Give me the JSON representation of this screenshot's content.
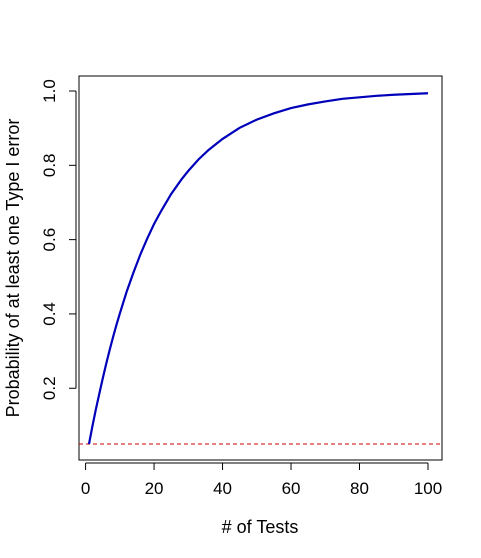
{
  "chart_data": {
    "type": "line",
    "title": "",
    "xlabel": "# of Tests",
    "ylabel": "Probability of at least one Type I error",
    "xlim": [
      1,
      100
    ],
    "ylim": [
      0.05,
      1.0
    ],
    "x_ticks": [
      0,
      20,
      40,
      60,
      80,
      100
    ],
    "y_ticks": [
      0.2,
      0.4,
      0.6,
      0.8,
      1.0
    ],
    "x_tick_labels": [
      "0",
      "20",
      "40",
      "60",
      "80",
      "100"
    ],
    "y_tick_labels": [
      "0.2",
      "0.4",
      "0.6",
      "0.8",
      "1.0"
    ],
    "series": [
      {
        "color": "#0000bb",
        "x": [
          1,
          2,
          3,
          4,
          5,
          6,
          7,
          8,
          9,
          10,
          12,
          14,
          16,
          18,
          20,
          22,
          25,
          28,
          30,
          33,
          36,
          40,
          45,
          50,
          55,
          60,
          65,
          70,
          75,
          80,
          85,
          90,
          95,
          100
        ],
        "y": [
          0.05,
          0.098,
          0.143,
          0.185,
          0.226,
          0.265,
          0.302,
          0.337,
          0.37,
          0.401,
          0.46,
          0.512,
          0.56,
          0.603,
          0.642,
          0.676,
          0.723,
          0.762,
          0.785,
          0.816,
          0.842,
          0.871,
          0.901,
          0.923,
          0.94,
          0.954,
          0.964,
          0.972,
          0.979,
          0.983,
          0.987,
          0.99,
          0.992,
          0.994
        ]
      }
    ],
    "reference_line": {
      "y": 0.05,
      "color": "#cc0000",
      "style": "dashed"
    },
    "grid": false,
    "legend": "none"
  }
}
